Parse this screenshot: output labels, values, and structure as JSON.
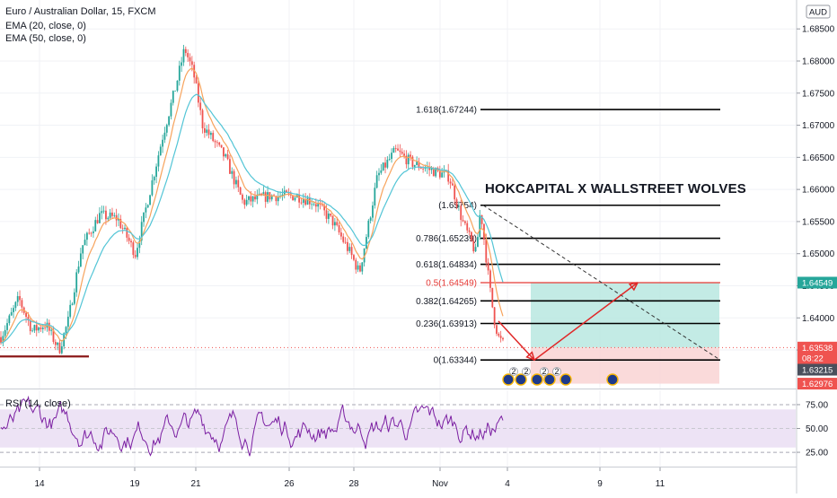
{
  "header": {
    "title": "Euro / Australian Dollar, 15, FXCM",
    "indicator_1": "EMA (20, close, 0)",
    "indicator_2": "EMA (50, close, 0)",
    "currency_badge": "AUD",
    "headline": "HOKCAPITAL X WALLSTREET WOLVES"
  },
  "chart_data": [
    {
      "type": "candlestick",
      "title": "Euro / Australian Dollar, 15, FXCM",
      "xlabel": "",
      "ylabel": "",
      "x_ticks": [
        "14",
        "19",
        "21",
        "26",
        "28",
        "Nov",
        "4",
        "9",
        "11"
      ],
      "y_ticks": [
        1.635,
        1.64,
        1.645,
        1.65,
        1.655,
        1.66,
        1.665,
        1.67,
        1.675,
        1.68,
        1.685
      ],
      "y_tick_labels": [
        "1.63500",
        "1.64000",
        "1.64500",
        "1.65000",
        "1.65500",
        "1.66000",
        "1.66500",
        "1.67000",
        "1.67500",
        "1.68000",
        "1.68500"
      ],
      "ylim": [
        1.629,
        1.6895
      ],
      "grid": true,
      "price_path": {
        "t": [
          0.0,
          0.02,
          0.035,
          0.05,
          0.065,
          0.075,
          0.09,
          0.11,
          0.13,
          0.15,
          0.16,
          0.18,
          0.195,
          0.205,
          0.215,
          0.225,
          0.25,
          0.27,
          0.3,
          0.33,
          0.35,
          0.37,
          0.39,
          0.4,
          0.42,
          0.44,
          0.46,
          0.48,
          0.5,
          0.515,
          0.53,
          0.535,
          0.545,
          0.55,
          0.555,
          0.56
        ],
        "value": [
          1.637,
          1.643,
          1.638,
          1.639,
          1.635,
          1.6395,
          1.651,
          1.656,
          1.6555,
          1.65,
          1.656,
          1.668,
          1.676,
          1.682,
          1.678,
          1.67,
          1.665,
          1.658,
          1.659,
          1.659,
          1.658,
          1.655,
          1.65,
          1.647,
          1.662,
          1.666,
          1.664,
          1.663,
          1.662,
          1.655,
          1.65,
          1.657,
          1.645,
          1.64,
          1.637,
          1.636
        ]
      },
      "ema_20": "EMA (20, close, 0)",
      "ema_50": "EMA (50, close, 0)",
      "fibonacci": [
        {
          "label": "1.618(1.67244)",
          "value": 1.67244
        },
        {
          "label": "(1.65754)",
          "value": 1.65754
        },
        {
          "label": "0.786(1.65239)",
          "value": 1.65239
        },
        {
          "label": "0.618(1.64834)",
          "value": 1.64834
        },
        {
          "label": "0.5(1.64549)",
          "value": 1.64549,
          "highlight": true
        },
        {
          "label": "0.382(1.64265)",
          "value": 1.64265
        },
        {
          "label": "0.236(1.63913)",
          "value": 1.63913
        },
        {
          "label": "0(1.63344)",
          "value": 1.63344
        }
      ],
      "support_line": 1.634,
      "position": {
        "entry": 1.63538,
        "target": 1.64549,
        "stop": 1.62976
      },
      "price_labels": [
        {
          "text": "1.64549",
          "value": 1.64549,
          "color": "#26a69a"
        },
        {
          "text": "1.63538",
          "value": 1.63538,
          "color": "#ef5350"
        },
        {
          "text": "08:22",
          "value": 1.63375,
          "color": "#ef5350"
        },
        {
          "text": "1.63215",
          "value": 1.63215,
          "color": "#4a4f5c"
        },
        {
          "text": "1.62976",
          "value": 1.62976,
          "color": "#ef5350"
        }
      ],
      "event_badges": [
        "2",
        "2",
        "2",
        "2"
      ],
      "colors": {
        "up": "#26a69a",
        "down": "#ef5350",
        "ema20": "#f7a35c",
        "ema50": "#53c5d6",
        "arrow": "#e02828",
        "target_zone": "#b9e7e1",
        "stop_zone": "#f9d3d3",
        "trend": "#333333"
      }
    },
    {
      "type": "line",
      "title": "RSI (14, close)",
      "xlabel": "",
      "ylabel": "",
      "y_ticks": [
        25,
        50,
        75
      ],
      "y_tick_labels": [
        "25.00",
        "50.00",
        "75.00"
      ],
      "ylim": [
        10,
        90
      ],
      "band": [
        30,
        70
      ],
      "colors": {
        "line": "#7b1fa2",
        "band": "#ede3f5"
      }
    }
  ]
}
